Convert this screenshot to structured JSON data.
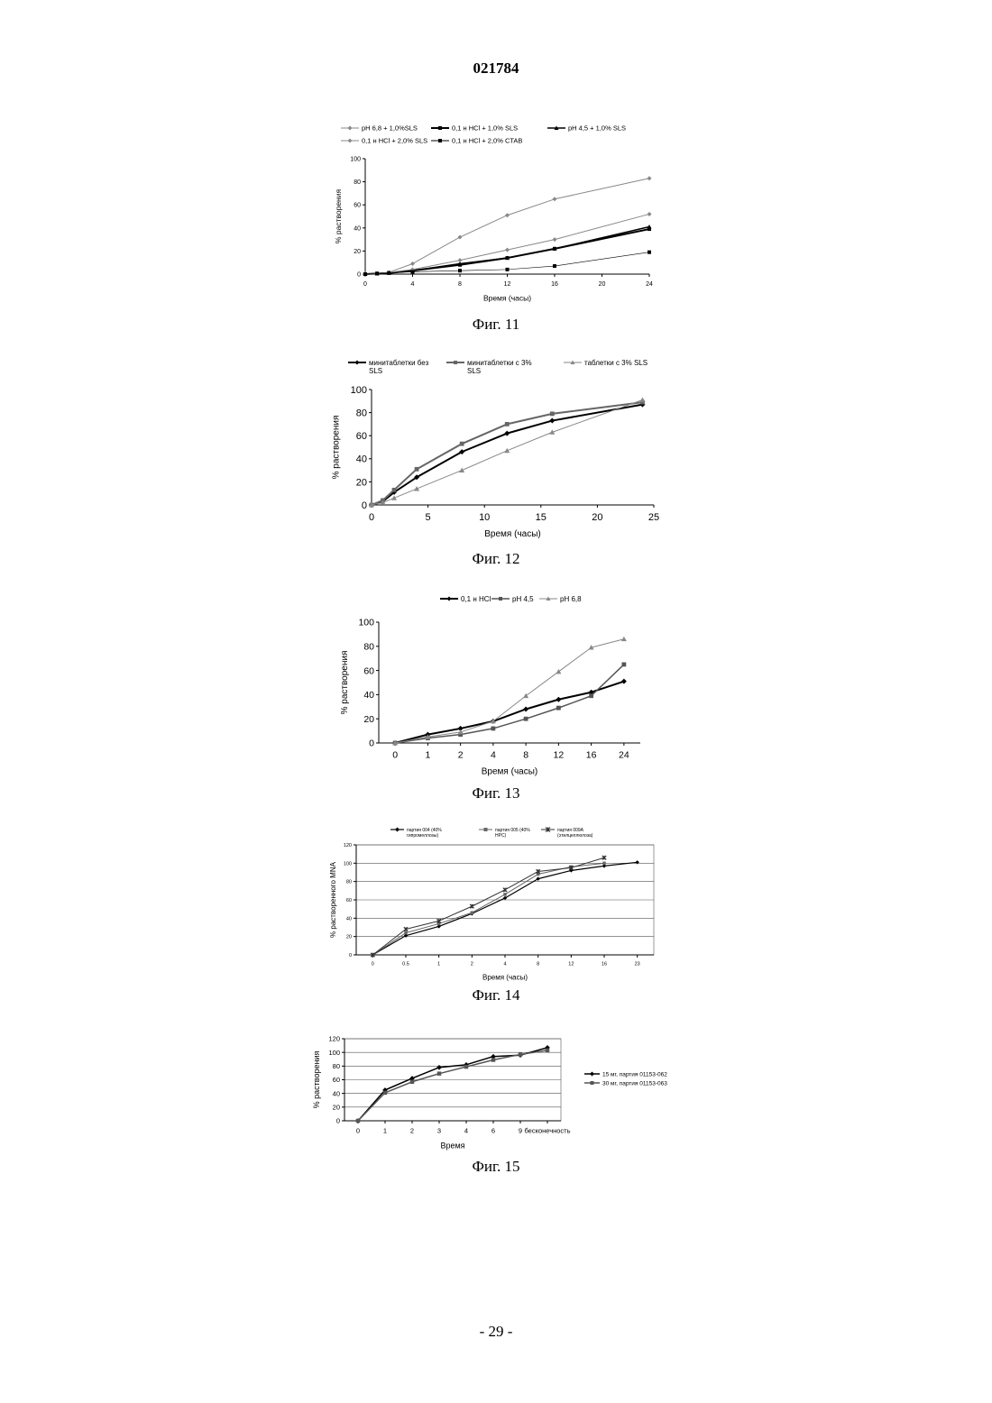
{
  "document": {
    "number": "021784",
    "page": "- 29 -"
  },
  "chart_data": [
    {
      "id": "fig11",
      "caption": "Фиг. 11",
      "type": "line",
      "xlabel": "Время (часы)",
      "ylabel": "% растворения",
      "xlim": [
        0,
        24
      ],
      "ylim": [
        0,
        100
      ],
      "xticks": [
        0,
        4,
        8,
        12,
        16,
        20,
        24
      ],
      "yticks": [
        0,
        20,
        40,
        60,
        80,
        100
      ],
      "grid": false,
      "legend_position": "top",
      "series": [
        {
          "name": "pH 6,8 + 1,0%SLS",
          "color": "#888888",
          "marker": "diamond",
          "width": 1,
          "points": [
            [
              0,
              0
            ],
            [
              1,
              0.5
            ],
            [
              2,
              1.5
            ],
            [
              4,
              9
            ],
            [
              8,
              32
            ],
            [
              12,
              51
            ],
            [
              16,
              65
            ],
            [
              24,
              83
            ]
          ]
        },
        {
          "name": "0,1 н HCl + 1,0% SLS",
          "color": "#000000",
          "marker": "square",
          "width": 2,
          "points": [
            [
              0,
              0
            ],
            [
              1,
              0.5
            ],
            [
              2,
              1
            ],
            [
              4,
              3
            ],
            [
              8,
              8
            ],
            [
              12,
              14
            ],
            [
              16,
              22
            ],
            [
              24,
              39
            ]
          ]
        },
        {
          "name": "pH 4,5 + 1,0% SLS",
          "color": "#000000",
          "marker": "triangle",
          "width": 1.5,
          "points": [
            [
              0,
              0
            ],
            [
              1,
              0.5
            ],
            [
              2,
              1
            ],
            [
              4,
              3
            ],
            [
              8,
              9
            ],
            [
              12,
              14
            ],
            [
              16,
              22
            ],
            [
              24,
              41
            ]
          ]
        },
        {
          "name": "0,1 н HCl + 2,0% SLS",
          "color": "#888888",
          "marker": "diamond",
          "width": 1,
          "points": [
            [
              0,
              0
            ],
            [
              1,
              0.5
            ],
            [
              2,
              1.5
            ],
            [
              4,
              4
            ],
            [
              8,
              12
            ],
            [
              12,
              21
            ],
            [
              16,
              30
            ],
            [
              24,
              52
            ]
          ]
        },
        {
          "name": "0,1 н HCl + 2,0% CTAB",
          "color": "#000000",
          "marker": "square",
          "width": 0.6,
          "points": [
            [
              0,
              0
            ],
            [
              1,
              0.5
            ],
            [
              2,
              1
            ],
            [
              4,
              2
            ],
            [
              8,
              3
            ],
            [
              12,
              4
            ],
            [
              16,
              7
            ],
            [
              24,
              19
            ]
          ]
        }
      ]
    },
    {
      "id": "fig12",
      "caption": "Фиг. 12",
      "type": "line",
      "xlabel": "Время (часы)",
      "ylabel": "% растворения",
      "xlim": [
        0,
        25
      ],
      "ylim": [
        0,
        100
      ],
      "xticks": [
        0,
        5,
        10,
        15,
        20,
        25
      ],
      "yticks": [
        0,
        20,
        40,
        60,
        80,
        100
      ],
      "grid": false,
      "legend_position": "top",
      "series": [
        {
          "name": "минитаблетки без SLS",
          "color": "#000000",
          "marker": "diamond",
          "width": 2,
          "points": [
            [
              0,
              0
            ],
            [
              1,
              3
            ],
            [
              2,
              11
            ],
            [
              4,
              24
            ],
            [
              8,
              46
            ],
            [
              12,
              62
            ],
            [
              16,
              73
            ],
            [
              24,
              87
            ]
          ]
        },
        {
          "name": "минитаблетки с 3% SLS",
          "color": "#666666",
          "marker": "square",
          "width": 2,
          "points": [
            [
              0,
              0
            ],
            [
              1,
              4
            ],
            [
              2,
              13
            ],
            [
              4,
              31
            ],
            [
              8,
              53
            ],
            [
              12,
              70
            ],
            [
              16,
              79
            ],
            [
              24,
              89
            ]
          ]
        },
        {
          "name": "таблетки с 3% SLS",
          "color": "#888888",
          "marker": "triangle",
          "width": 1,
          "points": [
            [
              0,
              0
            ],
            [
              1,
              2
            ],
            [
              2,
              6
            ],
            [
              4,
              14
            ],
            [
              8,
              30
            ],
            [
              12,
              47
            ],
            [
              16,
              63
            ],
            [
              24,
              91
            ]
          ]
        }
      ]
    },
    {
      "id": "fig13",
      "caption": "Фиг. 13",
      "type": "line",
      "xlabel": "Время (часы)",
      "ylabel": "% растворения",
      "categories": [
        "0",
        "1",
        "2",
        "4",
        "8",
        "12",
        "16",
        "24"
      ],
      "ylim": [
        0,
        100
      ],
      "yticks": [
        0,
        20,
        40,
        60,
        80,
        100
      ],
      "grid": false,
      "legend_position": "top",
      "series": [
        {
          "name": "0,1 н HCl",
          "color": "#000000",
          "marker": "diamond",
          "width": 2,
          "values": [
            0,
            7,
            12,
            18,
            28,
            36,
            42,
            51
          ]
        },
        {
          "name": "pH 4,5",
          "color": "#555555",
          "marker": "square",
          "width": 1.5,
          "values": [
            0,
            4,
            7,
            12,
            20,
            29,
            39,
            65
          ]
        },
        {
          "name": "pH 6,8",
          "color": "#888888",
          "marker": "triangle",
          "width": 1,
          "values": [
            0,
            5,
            9,
            18,
            39,
            59,
            79,
            86
          ]
        }
      ]
    },
    {
      "id": "fig14",
      "caption": "Фиг. 14",
      "type": "line",
      "xlabel": "Время (часы)",
      "ylabel": "% растворенного MNA",
      "categories": [
        "0",
        "0.5",
        "1",
        "2",
        "4",
        "8",
        "12",
        "16",
        "23"
      ],
      "ylim": [
        0,
        120
      ],
      "yticks": [
        0,
        20,
        40,
        60,
        80,
        100,
        120
      ],
      "grid": true,
      "legend_position": "top",
      "series": [
        {
          "name": "партия 004 (40% гипромеллозы)",
          "color": "#000000",
          "marker": "diamond",
          "width": 1.2,
          "values": [
            0,
            21,
            31,
            45,
            62,
            83,
            92,
            97,
            101
          ]
        },
        {
          "name": "партия 005 (40% HPC)",
          "color": "#666666",
          "marker": "square",
          "width": 1,
          "values": [
            0,
            24,
            34,
            46,
            66,
            88,
            96,
            100,
            null
          ]
        },
        {
          "name": "партия 009А (этилцеллюлоза)",
          "color": "#333333",
          "marker": "star",
          "width": 1,
          "values": [
            0,
            28,
            37,
            53,
            71,
            91,
            95,
            106,
            null
          ]
        }
      ]
    },
    {
      "id": "fig15",
      "caption": "Фиг. 15",
      "type": "line",
      "xlabel": "Время",
      "ylabel": "% растворения",
      "categories": [
        "0",
        "1",
        "2",
        "3",
        "4",
        "6",
        "9",
        "бесконечность"
      ],
      "ylim": [
        0,
        120
      ],
      "yticks": [
        0,
        20,
        40,
        60,
        80,
        100,
        120
      ],
      "grid": true,
      "legend_position": "right",
      "series": [
        {
          "name": "15 мг, партия 01153-062",
          "color": "#000000",
          "marker": "diamond",
          "width": 1.5,
          "values": [
            0,
            45,
            62,
            78,
            82,
            94,
            96,
            107
          ]
        },
        {
          "name": "30 мг, партия 01153-063",
          "color": "#555555",
          "marker": "square",
          "width": 1.5,
          "values": [
            0,
            41,
            57,
            69,
            79,
            89,
            97,
            103
          ]
        }
      ]
    }
  ]
}
